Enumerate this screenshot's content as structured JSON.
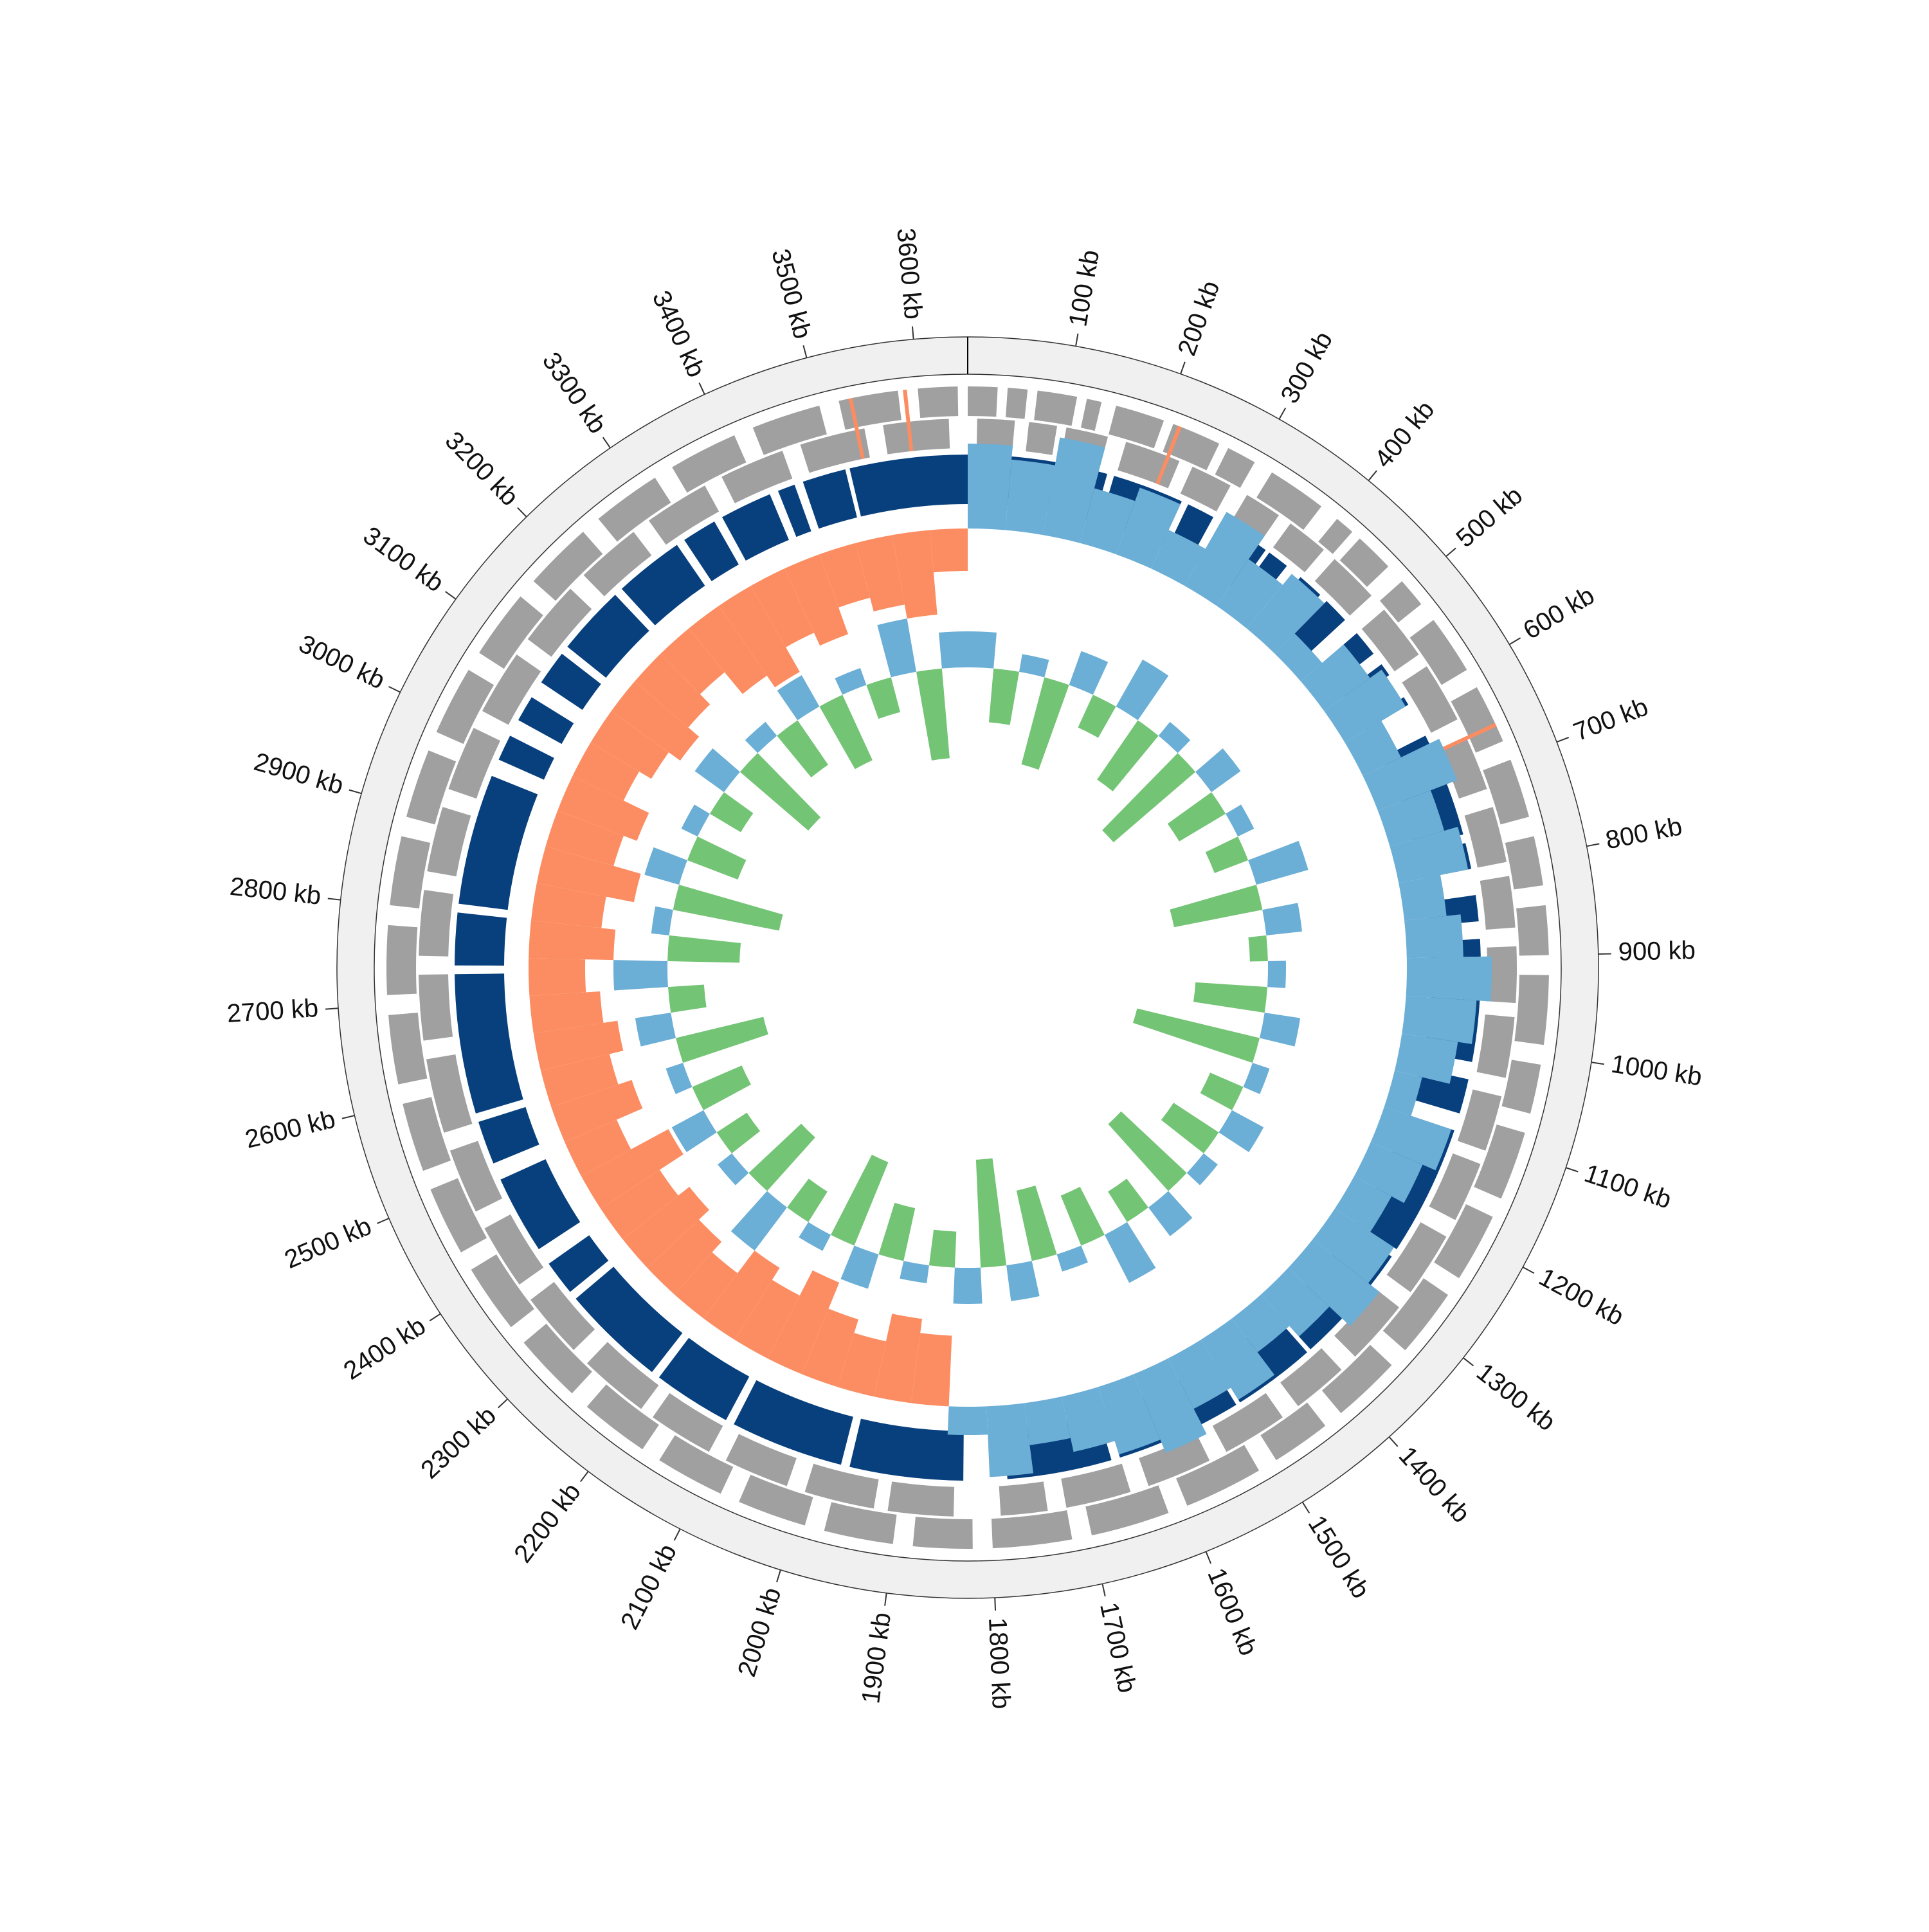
{
  "chart_data": {
    "type": "circular-genome",
    "xlim": [
      0,
      3650
    ],
    "xticks": [
      {
        "value": 100,
        "label": "100 kb"
      },
      {
        "value": 200,
        "label": "200 kb"
      },
      {
        "value": 300,
        "label": "300 kb"
      },
      {
        "value": 400,
        "label": "400 kb"
      },
      {
        "value": 500,
        "label": "500 kb"
      },
      {
        "value": 600,
        "label": "600 kb"
      },
      {
        "value": 700,
        "label": "700 kb"
      },
      {
        "value": 800,
        "label": "800 kb"
      },
      {
        "value": 900,
        "label": "900 kb"
      },
      {
        "value": 1000,
        "label": "1000 kb"
      },
      {
        "value": 1100,
        "label": "1100 kb"
      },
      {
        "value": 1200,
        "label": "1200 kb"
      },
      {
        "value": 1300,
        "label": "1300 kb"
      },
      {
        "value": 1400,
        "label": "1400 kb"
      },
      {
        "value": 1500,
        "label": "1500 kb"
      },
      {
        "value": 1600,
        "label": "1600 kb"
      },
      {
        "value": 1700,
        "label": "1700 kb"
      },
      {
        "value": 1800,
        "label": "1800 kb"
      },
      {
        "value": 1900,
        "label": "1900 kb"
      },
      {
        "value": 2000,
        "label": "2000 kb"
      },
      {
        "value": 2100,
        "label": "2100 kb"
      },
      {
        "value": 2200,
        "label": "2200 kb"
      },
      {
        "value": 2300,
        "label": "2300 kb"
      },
      {
        "value": 2400,
        "label": "2400 kb"
      },
      {
        "value": 2500,
        "label": "2500 kb"
      },
      {
        "value": 2600,
        "label": "2600 kb"
      },
      {
        "value": 2700,
        "label": "2700 kb"
      },
      {
        "value": 2800,
        "label": "2800 kb"
      },
      {
        "value": 2900,
        "label": "2900 kb"
      },
      {
        "value": 3000,
        "label": "3000 kb"
      },
      {
        "value": 3100,
        "label": "3100 kb"
      },
      {
        "value": 3200,
        "label": "3200 kb"
      },
      {
        "value": 3300,
        "label": "3300 kb"
      },
      {
        "value": 3400,
        "label": "3400 kb"
      },
      {
        "value": 3500,
        "label": "3500 kb"
      },
      {
        "value": 3600,
        "label": "3600 kb"
      }
    ],
    "feature_tracks": [
      {
        "color": "#a0a0a0",
        "start": [
          0,
          40,
          70,
          120,
          150,
          210,
          270,
          320,
          400,
          430,
          490,
          540,
          620,
          700,
          780,
          850,
          920,
          1010,
          1080,
          1170,
          1260,
          1350,
          1440,
          1520,
          1620,
          1720,
          1820,
          1900,
          1990,
          2080,
          2170,
          2260,
          2350,
          2440,
          2530,
          2620,
          2710,
          2800,
          2890,
          2980,
          3070,
          3160,
          3250,
          3340,
          3430,
          3520,
          3600
        ],
        "end": [
          30,
          60,
          110,
          135,
          200,
          260,
          300,
          380,
          420,
          470,
          520,
          600,
          680,
          760,
          830,
          900,
          990,
          1060,
          1150,
          1240,
          1330,
          1420,
          1500,
          1600,
          1700,
          1800,
          1880,
          1970,
          2060,
          2150,
          2240,
          2330,
          2420,
          2510,
          2600,
          2690,
          2780,
          2870,
          2960,
          3050,
          3140,
          3230,
          3320,
          3410,
          3500,
          3580,
          3640
        ]
      },
      {
        "color": "#a0a0a0",
        "start": [
          10,
          65,
          105,
          170,
          245,
          310,
          365,
          425,
          500,
          575,
          660,
          740,
          815,
          890,
          965,
          1050,
          1125,
          1210,
          1300,
          1390,
          1470,
          1560,
          1650,
          1740,
          1840,
          1925,
          2020,
          2110,
          2195,
          2290,
          2380,
          2470,
          2560,
          2660,
          2750,
          2840,
          2930,
          3020,
          3110,
          3200,
          3290,
          3380,
          3470,
          3560
        ],
        "end": [
          50,
          95,
          150,
          230,
          290,
          350,
          410,
          480,
          560,
          640,
          720,
          800,
          870,
          950,
          1030,
          1110,
          1190,
          1280,
          1370,
          1450,
          1540,
          1630,
          1720,
          1790,
          1910,
          2000,
          2090,
          2180,
          2270,
          2360,
          2450,
          2540,
          2640,
          2730,
          2820,
          2910,
          3000,
          3090,
          3180,
          3270,
          3360,
          3450,
          3540,
          3630
        ]
      },
      {
        "color": "#fc8d62",
        "start": [
          3530,
          3585,
          215,
          660
        ],
        "end": [
          3534,
          3589,
          219,
          664
        ]
      },
      {
        "color": "#08407e",
        "start": [
          3515,
          0,
          45,
          110,
          168,
          258,
          300,
          340,
          365,
          410,
          450,
          500,
          545,
          590,
          640,
          770,
          830,
          880,
          920,
          1040,
          1100,
          1260,
          1405,
          1505,
          1660,
          1830,
          1970,
          2110,
          2210,
          2340,
          2400,
          2510,
          2570,
          2740,
          2810,
          2980,
          3030,
          3080,
          3130,
          3220,
          3310,
          3360,
          3430,
          3460
        ],
        "end": [
          3650,
          40,
          100,
          160,
          250,
          290,
          330,
          360,
          390,
          440,
          480,
          530,
          560,
          600,
          760,
          800,
          860,
          900,
          1020,
          1080,
          1250,
          1400,
          1500,
          1650,
          1780,
          1960,
          2100,
          2200,
          2330,
          2380,
          2490,
          2560,
          2730,
          2800,
          2960,
          3010,
          3060,
          3120,
          3210,
          3300,
          3350,
          3420,
          3450,
          3510
        ]
      }
    ],
    "x": [
      0,
      50,
      100,
      150,
      200,
      250,
      300,
      350,
      400,
      450,
      500,
      550,
      600,
      650,
      700,
      750,
      800,
      850,
      900,
      950,
      1000,
      1050,
      1100,
      1150,
      1200,
      1250,
      1300,
      1350,
      1400,
      1450,
      1500,
      1550,
      1600,
      1650,
      1700,
      1750,
      1800,
      1850,
      1900,
      1950,
      2000,
      2050,
      2100,
      2150,
      2200,
      2250,
      2300,
      2350,
      2400,
      2450,
      2500,
      2550,
      2600,
      2650,
      2700,
      2750,
      2800,
      2850,
      2900,
      2950,
      3000,
      3050,
      3100,
      3150,
      3200,
      3250,
      3300,
      3350,
      3400,
      3450,
      3500,
      3550,
      3600
    ],
    "series": [
      {
        "positive_color": "#6baed6",
        "negative_color": "#fc8d62",
        "values": [
          0.06,
          0.05,
          0.07,
          0.04,
          0.05,
          0.03,
          0.06,
          0.04,
          0.05,
          0.02,
          0.04,
          0.05,
          0.03,
          0.06,
          0.04,
          0.05,
          0.03,
          0.04,
          0.06,
          0.05,
          0.04,
          0.02,
          0.05,
          0.04,
          0.03,
          0.05,
          0.06,
          0.04,
          0.03,
          0.05,
          0.04,
          0.06,
          0.05,
          0.04,
          0.03,
          0.05,
          0.02,
          -0.05,
          -0.06,
          -0.04,
          -0.05,
          -0.07,
          -0.05,
          -0.06,
          -0.04,
          -0.05,
          -0.06,
          -0.05,
          -0.07,
          -0.04,
          -0.06,
          -0.05,
          -0.06,
          -0.05,
          -0.04,
          -0.06,
          -0.05,
          -0.07,
          -0.05,
          -0.06,
          -0.04,
          -0.05,
          -0.06,
          -0.05,
          -0.04,
          -0.06,
          -0.07,
          -0.05,
          -0.06,
          -0.04,
          -0.05,
          -0.06,
          -0.03
        ]
      },
      {
        "positive_color": "#6baed6",
        "negative_color": "#74c476",
        "values": [
          0.02,
          -0.03,
          0.01,
          -0.05,
          0.02,
          -0.02,
          0.03,
          -0.04,
          0.01,
          -0.06,
          0.02,
          -0.03,
          0.01,
          -0.02,
          0.03,
          -0.05,
          0.02,
          -0.01,
          0.01,
          -0.04,
          0.02,
          -0.07,
          0.01,
          -0.02,
          0.02,
          -0.03,
          0.01,
          -0.05,
          0.02,
          -0.02,
          0.03,
          -0.03,
          0.01,
          -0.04,
          0.02,
          -0.06,
          0.02,
          -0.02,
          0.01,
          -0.03,
          0.02,
          -0.05,
          0.01,
          -0.02,
          0.03,
          -0.04,
          0.01,
          -0.02,
          0.02,
          -0.03,
          0.01,
          -0.05,
          0.02,
          -0.02,
          0.03,
          -0.04,
          0.01,
          -0.06,
          0.02,
          -0.03,
          0.01,
          -0.02,
          0.02,
          -0.05,
          0.01,
          -0.03,
          0.02,
          -0.04,
          0.01,
          -0.02,
          0.03,
          -0.05,
          0.02
        ]
      }
    ]
  }
}
